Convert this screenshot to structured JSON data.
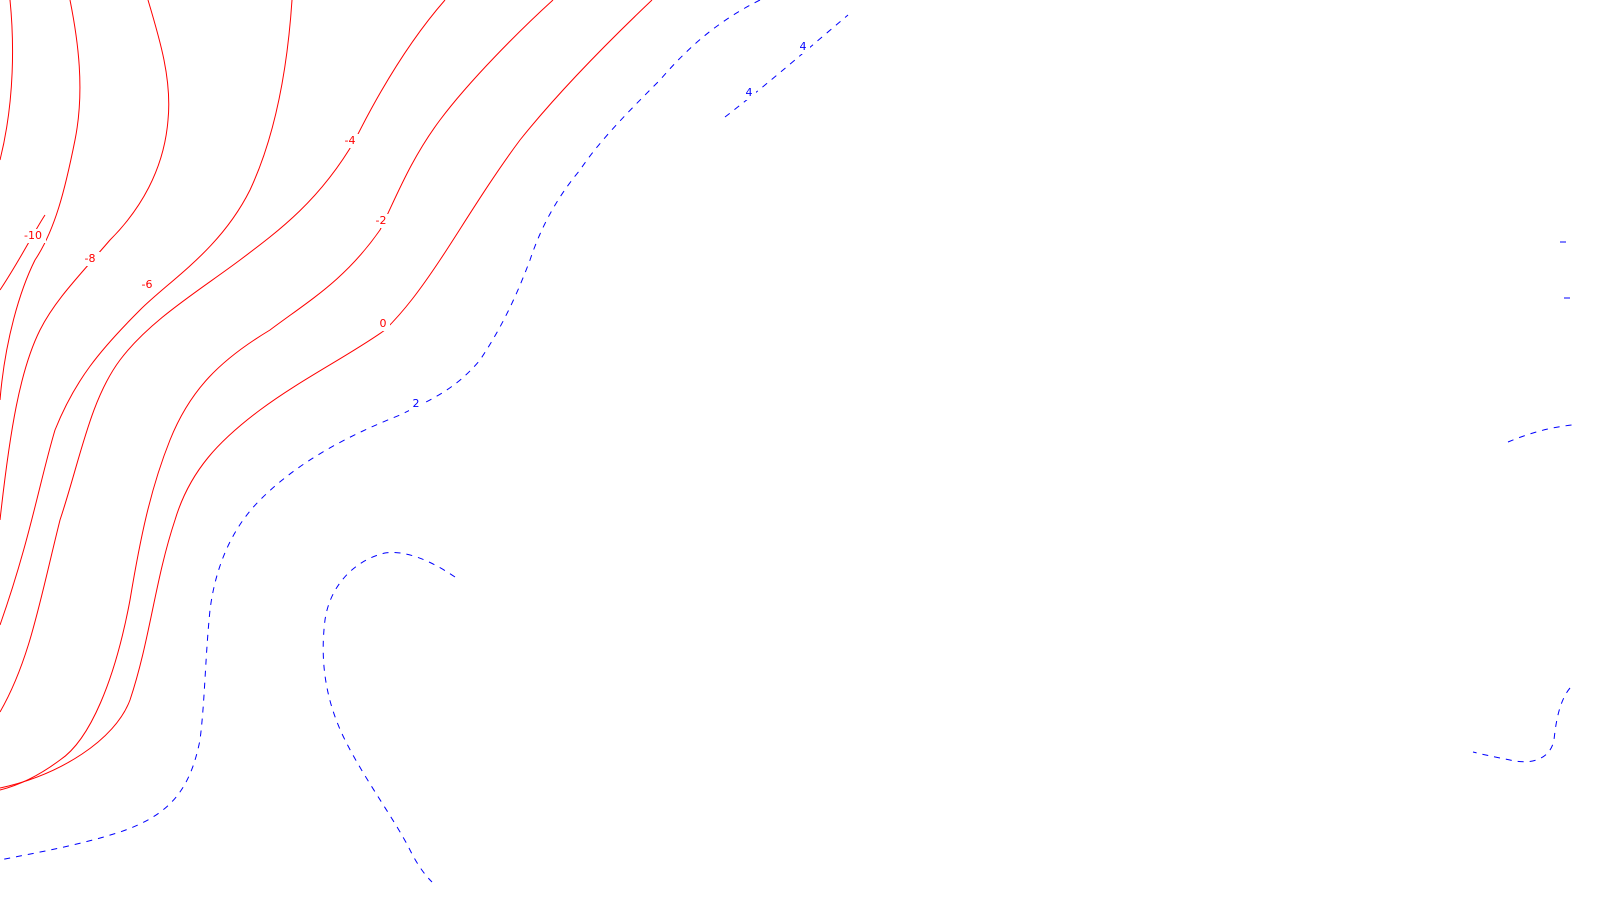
{
  "map": {
    "title": "",
    "background_color": "#ffffff",
    "negative_style": {
      "color": "#ff0000",
      "dash": "solid"
    },
    "positive_style": {
      "color": "#0000ff",
      "dash": "dashed"
    },
    "contours": [
      {
        "id": "c-neg10",
        "level": "-10",
        "sign": "negative",
        "label_text": "-10"
      },
      {
        "id": "c-neg8",
        "level": "-8",
        "sign": "negative",
        "label_text": "-8"
      },
      {
        "id": "c-neg6",
        "level": "-6",
        "sign": "negative",
        "label_text": "-6"
      },
      {
        "id": "c-neg4",
        "level": "-4",
        "sign": "negative",
        "label_text": "-4"
      },
      {
        "id": "c-neg2",
        "level": "-2",
        "sign": "negative",
        "label_text": "-2"
      },
      {
        "id": "c-zero",
        "level": "0",
        "sign": "negative",
        "label_text": "0"
      },
      {
        "id": "c-pos2",
        "level": "2",
        "sign": "positive",
        "label_text": "2"
      },
      {
        "id": "c-pos4",
        "level": "4",
        "sign": "positive",
        "label_text": "4"
      },
      {
        "id": "c-pos4b",
        "level": "4",
        "sign": "positive",
        "label_text": "4"
      }
    ]
  }
}
